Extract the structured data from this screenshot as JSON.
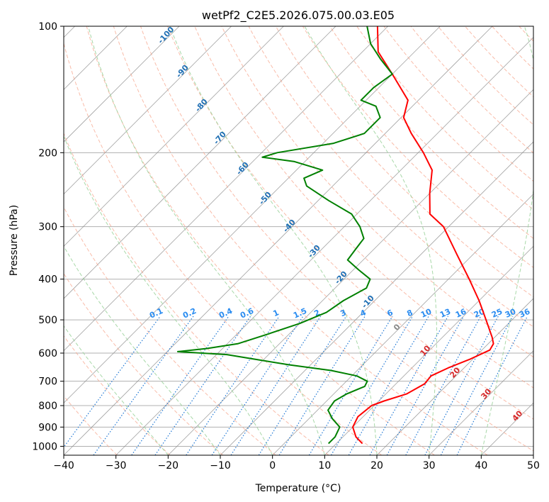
{
  "chart_data": {
    "type": "line",
    "title": "wetPf2_C2E5.2026.075.00.03.E05",
    "xlabel": "Temperature (°C)",
    "ylabel": "Pressure (hPa)",
    "xlim": [
      -40,
      50
    ],
    "ylim": [
      1050,
      100
    ],
    "y_scale": "log",
    "grid": true,
    "x_ticks": [
      "−40",
      "−30",
      "−20",
      "−10",
      "0",
      "10",
      "20",
      "30",
      "40",
      "50"
    ],
    "x_tick_values": [
      -40,
      -30,
      -20,
      -10,
      0,
      10,
      20,
      30,
      40,
      50
    ],
    "y_ticks": [
      "100",
      "200",
      "300",
      "400",
      "500",
      "600",
      "700",
      "800",
      "900",
      "1000"
    ],
    "y_tick_values": [
      100,
      200,
      300,
      400,
      500,
      600,
      700,
      800,
      900,
      1000
    ],
    "skew": 1,
    "series": [
      {
        "kind": "temperature",
        "color": "#ff0000",
        "points": [
          {
            "p": 985,
            "t": 15.0
          },
          {
            "p": 950,
            "t": 12.5
          },
          {
            "p": 900,
            "t": 10.0
          },
          {
            "p": 850,
            "t": 9.0
          },
          {
            "p": 800,
            "t": 9.5
          },
          {
            "p": 780,
            "t": 11.0
          },
          {
            "p": 750,
            "t": 14.0
          },
          {
            "p": 710,
            "t": 15.5
          },
          {
            "p": 680,
            "t": 15.2
          },
          {
            "p": 650,
            "t": 17.0
          },
          {
            "p": 620,
            "t": 19.5
          },
          {
            "p": 590,
            "t": 21.5
          },
          {
            "p": 570,
            "t": 21.0
          },
          {
            "p": 550,
            "t": 19.5
          },
          {
            "p": 500,
            "t": 15.0
          },
          {
            "p": 450,
            "t": 10.0
          },
          {
            "p": 400,
            "t": 4.0
          },
          {
            "p": 350,
            "t": -3.0
          },
          {
            "p": 300,
            "t": -11.0
          },
          {
            "p": 280,
            "t": -16.0
          },
          {
            "p": 250,
            "t": -20.0
          },
          {
            "p": 220,
            "t": -24.0
          },
          {
            "p": 200,
            "t": -29.0
          },
          {
            "p": 180,
            "t": -35.0
          },
          {
            "p": 165,
            "t": -39.5
          },
          {
            "p": 150,
            "t": -42.0
          },
          {
            "p": 130,
            "t": -50.0
          },
          {
            "p": 115,
            "t": -57.0
          },
          {
            "p": 100,
            "t": -62.0
          }
        ]
      },
      {
        "kind": "dewpoint",
        "color": "#008000",
        "points": [
          {
            "p": 985,
            "t": 8.5
          },
          {
            "p": 950,
            "t": 8.5
          },
          {
            "p": 900,
            "t": 7.5
          },
          {
            "p": 860,
            "t": 4.5
          },
          {
            "p": 820,
            "t": 2.0
          },
          {
            "p": 780,
            "t": 1.5
          },
          {
            "p": 750,
            "t": 2.5
          },
          {
            "p": 720,
            "t": 4.5
          },
          {
            "p": 700,
            "t": 4.0
          },
          {
            "p": 680,
            "t": 1.0
          },
          {
            "p": 660,
            "t": -5.0
          },
          {
            "p": 640,
            "t": -14.0
          },
          {
            "p": 620,
            "t": -22.0
          },
          {
            "p": 605,
            "t": -28.0
          },
          {
            "p": 595,
            "t": -38.0
          },
          {
            "p": 585,
            "t": -33.0
          },
          {
            "p": 570,
            "t": -28.0
          },
          {
            "p": 540,
            "t": -24.0
          },
          {
            "p": 510,
            "t": -20.0
          },
          {
            "p": 480,
            "t": -17.0
          },
          {
            "p": 450,
            "t": -16.0
          },
          {
            "p": 420,
            "t": -14.0
          },
          {
            "p": 400,
            "t": -15.0
          },
          {
            "p": 380,
            "t": -19.0
          },
          {
            "p": 360,
            "t": -23.0
          },
          {
            "p": 340,
            "t": -23.5
          },
          {
            "p": 320,
            "t": -24.0
          },
          {
            "p": 300,
            "t": -27.0
          },
          {
            "p": 280,
            "t": -31.0
          },
          {
            "p": 260,
            "t": -38.0
          },
          {
            "p": 240,
            "t": -45.0
          },
          {
            "p": 230,
            "t": -47.0
          },
          {
            "p": 220,
            "t": -45.0
          },
          {
            "p": 210,
            "t": -52.0
          },
          {
            "p": 205,
            "t": -59.0
          },
          {
            "p": 200,
            "t": -57.0
          },
          {
            "p": 190,
            "t": -48.0
          },
          {
            "p": 180,
            "t": -44.0
          },
          {
            "p": 165,
            "t": -44.0
          },
          {
            "p": 155,
            "t": -47.0
          },
          {
            "p": 150,
            "t": -51.0
          },
          {
            "p": 140,
            "t": -51.0
          },
          {
            "p": 130,
            "t": -50.0
          },
          {
            "p": 120,
            "t": -55.0
          },
          {
            "p": 110,
            "t": -60.0
          },
          {
            "p": 100,
            "t": -64.0
          }
        ]
      }
    ],
    "dry_adiabat_labels": [
      "-100",
      "-90",
      "-80",
      "-70",
      "-60",
      "-50",
      "-40",
      "-30",
      "-20",
      "-10"
    ],
    "mixing_ratio_labels": [
      "0.1",
      "0.2",
      "0.4",
      "0.6",
      "1",
      "1.5",
      "2",
      "3",
      "4",
      "6",
      "8",
      "10",
      "13",
      "16",
      "20",
      "25",
      "30",
      "36"
    ],
    "moist_adiabat_labels": [
      "0",
      "10",
      "20",
      "30",
      "40"
    ],
    "colors": {
      "temperature": "#ff0000",
      "dewpoint": "#008000",
      "isotherm": "#8c8c8c",
      "dry_adiabat": "#f7a58c",
      "moist_adiabat": "#9fd49f",
      "mixing_ratio": "#1f77d4",
      "dry_label": "#1f6fb4",
      "mixing_label": "#2a8cf0",
      "moist_gray_label": "#888888",
      "moist_red_label": "#d62728"
    }
  }
}
